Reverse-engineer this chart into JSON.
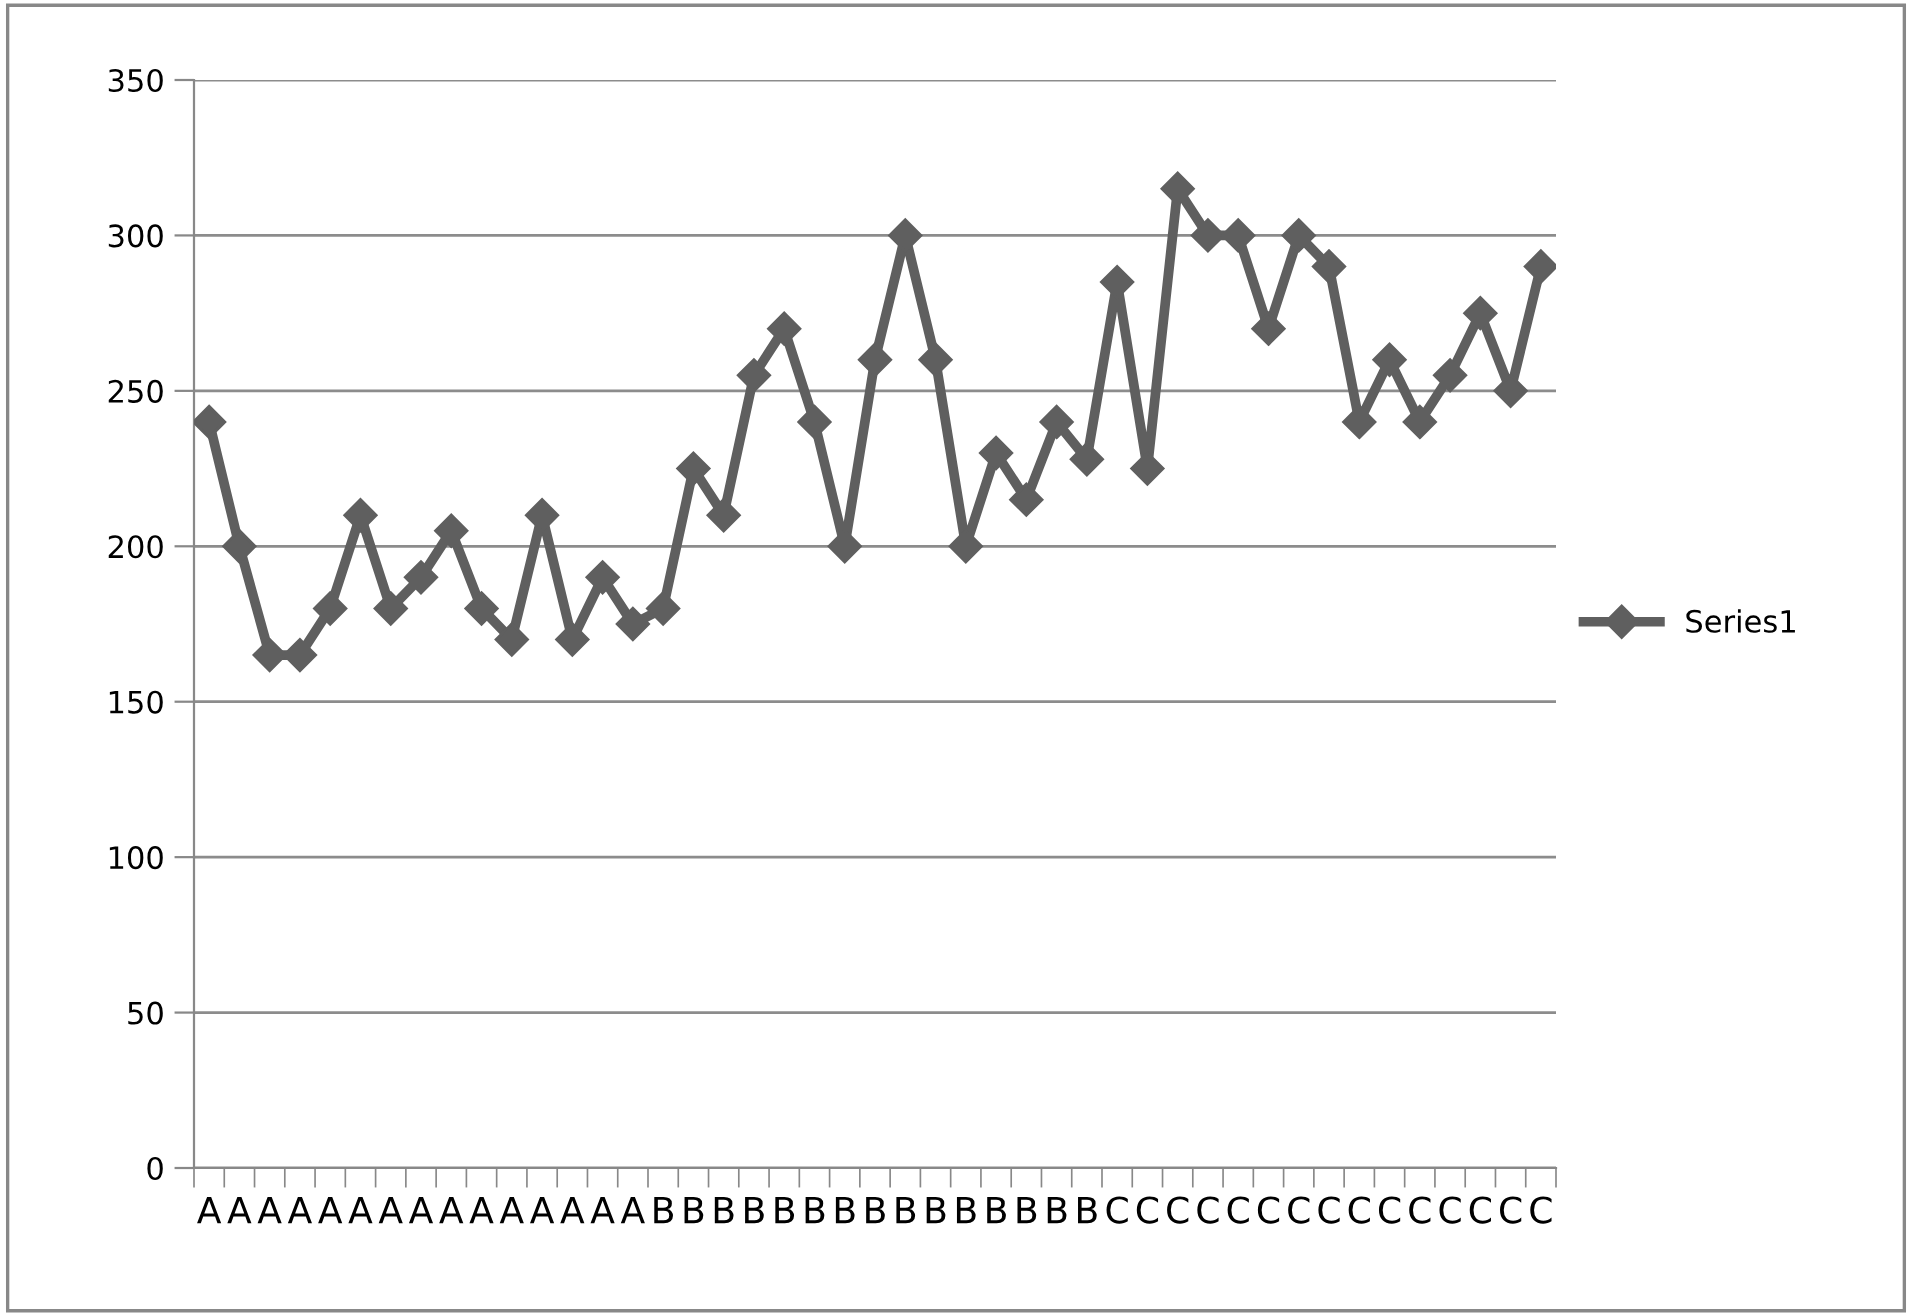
{
  "chart_data": {
    "type": "line",
    "categories": [
      "A",
      "A",
      "A",
      "A",
      "A",
      "A",
      "A",
      "A",
      "A",
      "A",
      "A",
      "A",
      "A",
      "A",
      "A",
      "B",
      "B",
      "B",
      "B",
      "B",
      "B",
      "B",
      "B",
      "B",
      "B",
      "B",
      "B",
      "B",
      "B",
      "B",
      "C",
      "C",
      "C",
      "C",
      "C",
      "C",
      "C",
      "C",
      "C",
      "C",
      "C",
      "C",
      "C",
      "C",
      "C"
    ],
    "series": [
      {
        "name": "Series1",
        "color": "#5f5f5f",
        "values": [
          240,
          200,
          165,
          165,
          180,
          210,
          180,
          190,
          205,
          180,
          170,
          210,
          170,
          190,
          175,
          180,
          225,
          210,
          255,
          270,
          240,
          200,
          260,
          300,
          260,
          200,
          230,
          215,
          240,
          228,
          285,
          225,
          315,
          300,
          300,
          270,
          300,
          290,
          240,
          260,
          240,
          255,
          275,
          250,
          290
        ]
      }
    ],
    "ylim": [
      0,
      350
    ],
    "yticks": [
      0,
      50,
      100,
      150,
      200,
      250,
      300,
      350
    ],
    "grid": "y",
    "legend": "right",
    "marker": "diamond",
    "line_style": "solid"
  }
}
